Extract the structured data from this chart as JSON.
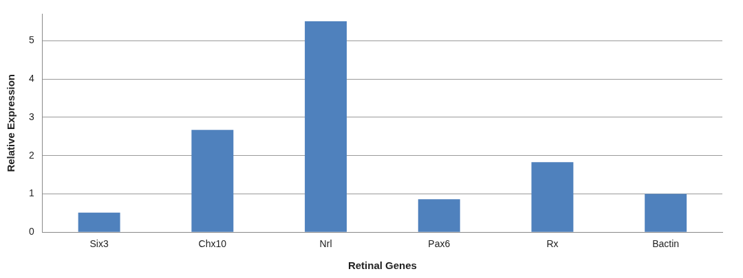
{
  "chart_data": {
    "type": "bar",
    "xlabel": "Retinal Genes",
    "ylabel": "Relative Expression",
    "categories": [
      "Six3",
      "Chx10",
      "Nrl",
      "Pax6",
      "Rx",
      "Bactin"
    ],
    "values": [
      0.51,
      2.67,
      5.51,
      0.86,
      1.83,
      1.0
    ],
    "color": "#4f81bd",
    "ylim": [
      0,
      5.7
    ],
    "yticks": [
      0,
      1,
      2,
      3,
      4,
      5
    ],
    "grid": "y",
    "legend": false
  }
}
